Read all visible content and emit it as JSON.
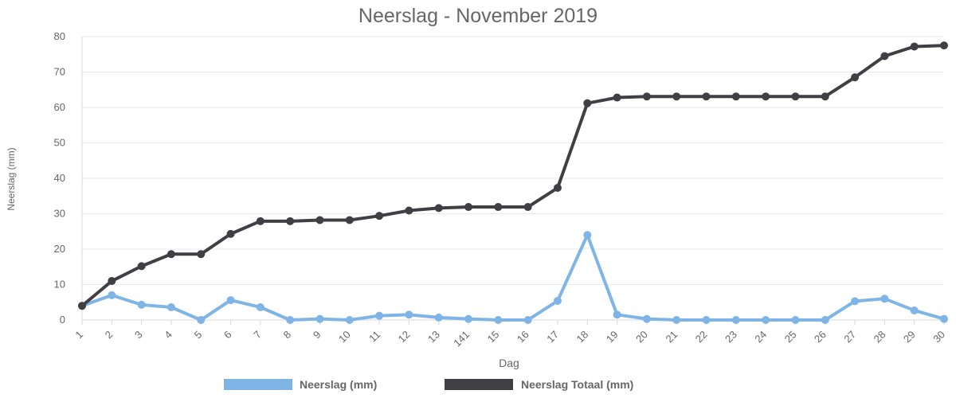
{
  "chart_data": {
    "type": "line",
    "title": "Neerslag - November 2019",
    "xlabel": "Dag",
    "ylabel": "Neerslag (mm)",
    "ylim": [
      0,
      80
    ],
    "y_ticks": [
      "0",
      "10",
      "20",
      "30",
      "40",
      "50",
      "60",
      "70",
      "80"
    ],
    "grid": true,
    "legend_position": "bottom",
    "categories": [
      "1",
      "2",
      "3",
      "4",
      "5",
      "6",
      "7",
      "8",
      "9",
      "10",
      "11",
      "12",
      "13",
      "141",
      "15",
      "16",
      "17",
      "18",
      "19",
      "20",
      "21",
      "22",
      "23",
      "24",
      "25",
      "26",
      "27",
      "28",
      "29",
      "30"
    ],
    "series": [
      {
        "name": "Neerslag (mm)",
        "color": "#7fb5e6",
        "values": [
          4.0,
          7.0,
          4.3,
          3.6,
          0.0,
          5.6,
          3.6,
          0.0,
          0.3,
          0.0,
          1.2,
          1.5,
          0.7,
          0.3,
          0.0,
          0.0,
          5.4,
          24.0,
          1.5,
          0.3,
          0.0,
          0.0,
          0.0,
          0.0,
          0.0,
          0.0,
          5.3,
          6.0,
          2.7,
          0.3
        ]
      },
      {
        "name": "Neerslag Totaal (mm)",
        "color": "#3f3f44",
        "values": [
          4.0,
          11.0,
          15.2,
          18.6,
          18.6,
          24.3,
          27.9,
          27.9,
          28.2,
          28.2,
          29.4,
          30.9,
          31.6,
          31.9,
          31.9,
          31.9,
          37.3,
          61.2,
          62.8,
          63.1,
          63.1,
          63.1,
          63.1,
          63.1,
          63.1,
          63.1,
          68.5,
          74.5,
          77.2,
          77.5
        ]
      }
    ]
  }
}
